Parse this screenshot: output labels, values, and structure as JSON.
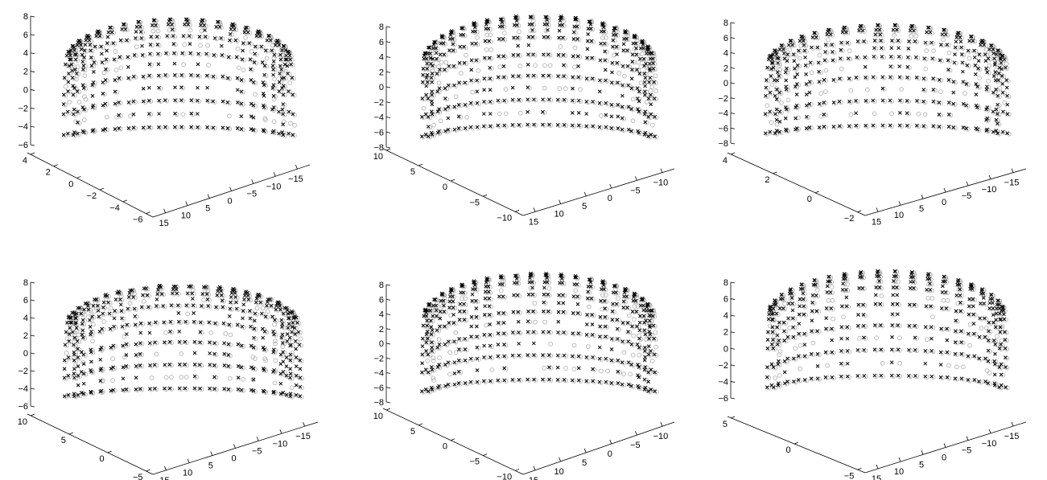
{
  "figure": {
    "rows": 2,
    "cols": 3
  },
  "colors": {
    "series_x": "#000000",
    "series_o": "#b4b4b4",
    "axis": "#000000"
  },
  "chart_data": [
    {
      "type": "scatter",
      "panel": "top-left",
      "geometry": "arc-flat",
      "xlabel": "",
      "ylabel": "",
      "zlabel": "",
      "xlim": [
        -15,
        15
      ],
      "ylim": [
        -6,
        4
      ],
      "zlim": [
        -6,
        8
      ],
      "x_ticks": [
        "15",
        "10",
        "5",
        "0",
        "−5",
        "−10",
        "−15"
      ],
      "y_ticks": [
        "4",
        "2",
        "0",
        "−2",
        "−4",
        "−6"
      ],
      "z_ticks": [
        "8",
        "6",
        "4",
        "2",
        "0",
        "−2",
        "−4",
        "−6"
      ],
      "series": [
        {
          "marker": "x",
          "mode": "arcs",
          "arcs": 20,
          "points_per_arc": 26
        },
        {
          "marker": "o",
          "mode": "arcs",
          "arcs": 20,
          "points_per_arc": 26
        }
      ]
    },
    {
      "type": "scatter",
      "panel": "top-middle",
      "geometry": "arc-deep",
      "xlabel": "",
      "ylabel": "",
      "zlabel": "",
      "xlim": [
        -12,
        15
      ],
      "ylim": [
        -10,
        10
      ],
      "zlim": [
        -8,
        8
      ],
      "x_ticks": [
        "15",
        "10",
        "5",
        "0",
        "−5",
        "−10"
      ],
      "y_ticks": [
        "10",
        "5",
        "0",
        "−5",
        "−10"
      ],
      "z_ticks": [
        "8",
        "6",
        "4",
        "2",
        "0",
        "−2",
        "−4",
        "−6",
        "−8"
      ],
      "series": [
        {
          "marker": "x",
          "mode": "spikes",
          "arcs": 22,
          "points_per_arc": 28
        },
        {
          "marker": "o",
          "mode": "spikes",
          "arcs": 22,
          "points_per_arc": 28
        }
      ]
    },
    {
      "type": "scatter",
      "panel": "top-right",
      "geometry": "arc-flat",
      "xlabel": "",
      "ylabel": "",
      "zlabel": "",
      "xlim": [
        -15,
        15
      ],
      "ylim": [
        -2,
        4
      ],
      "zlim": [
        -8,
        8
      ],
      "x_ticks": [
        "15",
        "10",
        "5",
        "0",
        "−5",
        "−10",
        "−15"
      ],
      "y_ticks": [
        "4",
        "2",
        "0",
        "−2"
      ],
      "z_ticks": [
        "8",
        "6",
        "4",
        "2",
        "0",
        "−2",
        "−4",
        "−6",
        "−8"
      ],
      "series": [
        {
          "marker": "x",
          "mode": "arcs",
          "arcs": 20,
          "points_per_arc": 26
        },
        {
          "marker": "o",
          "mode": "arcs",
          "arcs": 20,
          "points_per_arc": 26
        }
      ]
    },
    {
      "type": "scatter",
      "panel": "bottom-left",
      "geometry": "arc-deep",
      "xlabel": "",
      "ylabel": "",
      "zlabel": "",
      "xlim": [
        -15,
        15
      ],
      "ylim": [
        -10,
        10
      ],
      "zlim": [
        -6,
        8
      ],
      "x_ticks": [
        "15",
        "10",
        "5",
        "0",
        "−5",
        "−10",
        "−15"
      ],
      "y_ticks": [
        "10",
        "5",
        "0",
        "−5"
      ],
      "z_ticks": [
        "8",
        "6",
        "4",
        "2",
        "0",
        "−2",
        "−4",
        "−6"
      ],
      "series": [
        {
          "marker": "x",
          "mode": "arcs",
          "arcs": 22,
          "points_per_arc": 28
        },
        {
          "marker": "o",
          "mode": "arcs",
          "arcs": 22,
          "points_per_arc": 28
        }
      ]
    },
    {
      "type": "scatter",
      "panel": "bottom-middle",
      "geometry": "arc-deep",
      "xlabel": "",
      "ylabel": "",
      "zlabel": "",
      "xlim": [
        -12,
        15
      ],
      "ylim": [
        -10,
        10
      ],
      "zlim": [
        -8,
        8
      ],
      "x_ticks": [
        "15",
        "10",
        "5",
        "0",
        "−5",
        "−10"
      ],
      "y_ticks": [
        "10",
        "5",
        "0",
        "−5",
        "−10"
      ],
      "z_ticks": [
        "8",
        "6",
        "4",
        "2",
        "0",
        "−2",
        "−4",
        "−6",
        "−8"
      ],
      "series": [
        {
          "marker": "x",
          "mode": "spikes",
          "arcs": 22,
          "points_per_arc": 28
        },
        {
          "marker": "o",
          "mode": "spikes",
          "arcs": 22,
          "points_per_arc": 28
        }
      ]
    },
    {
      "type": "scatter",
      "panel": "bottom-right",
      "geometry": "arc-deep",
      "xlabel": "",
      "ylabel": "",
      "zlabel": "",
      "xlim": [
        -15,
        15
      ],
      "ylim": [
        -10,
        10
      ],
      "zlim": [
        -6,
        8
      ],
      "x_ticks": [
        "15",
        "10",
        "5",
        "0",
        "−5",
        "−10",
        "−15"
      ],
      "y_ticks": [
        "5",
        "0",
        "−5"
      ],
      "z_ticks": [
        "8",
        "6",
        "4",
        "2",
        "0",
        "−2",
        "−4",
        "−6"
      ],
      "series": [
        {
          "marker": "x",
          "mode": "spikes",
          "arcs": 20,
          "points_per_arc": 26
        },
        {
          "marker": "o",
          "mode": "spikes",
          "arcs": 20,
          "points_per_arc": 26
        }
      ]
    }
  ]
}
